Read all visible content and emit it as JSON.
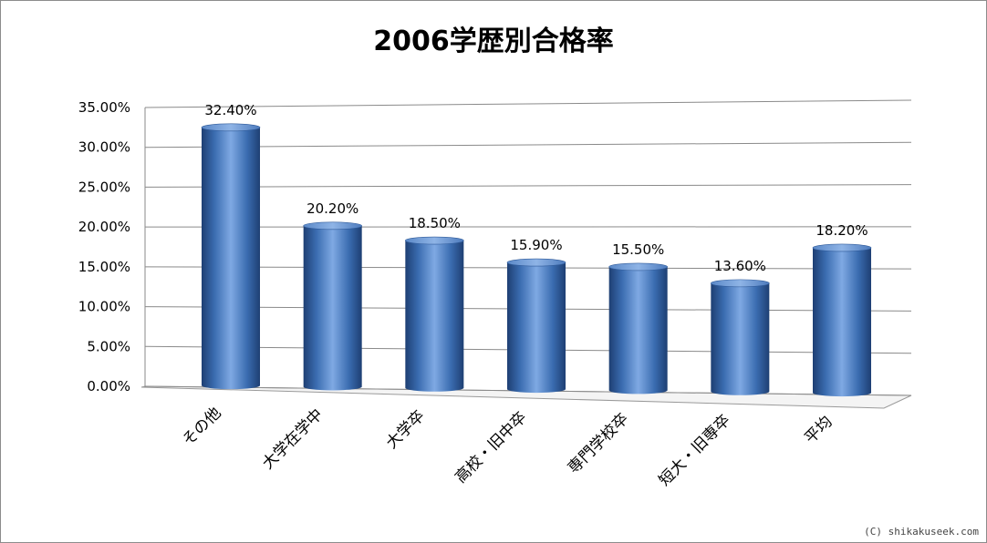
{
  "chart_data": {
    "type": "bar",
    "title": "2006学歴別合格率",
    "categories": [
      "その他",
      "大学在学中",
      "大学卒",
      "高校・旧中卒",
      "専門学校卒",
      "短大・旧専卒",
      "平均"
    ],
    "values": [
      32.4,
      20.2,
      18.5,
      15.9,
      15.5,
      13.6,
      18.2
    ],
    "data_labels": [
      "32.40%",
      "20.20%",
      "18.50%",
      "15.90%",
      "15.50%",
      "13.60%",
      "18.20%"
    ],
    "yticks": [
      "0.00%",
      "5.00%",
      "10.00%",
      "15.00%",
      "20.00%",
      "25.00%",
      "30.00%",
      "35.00%"
    ],
    "ylim": [
      0,
      35
    ],
    "xlabel": "",
    "ylabel": "",
    "grid": true,
    "legend": "none",
    "bar_color": "#4a7ebb"
  },
  "credit": "(C) shikakuseek.com"
}
